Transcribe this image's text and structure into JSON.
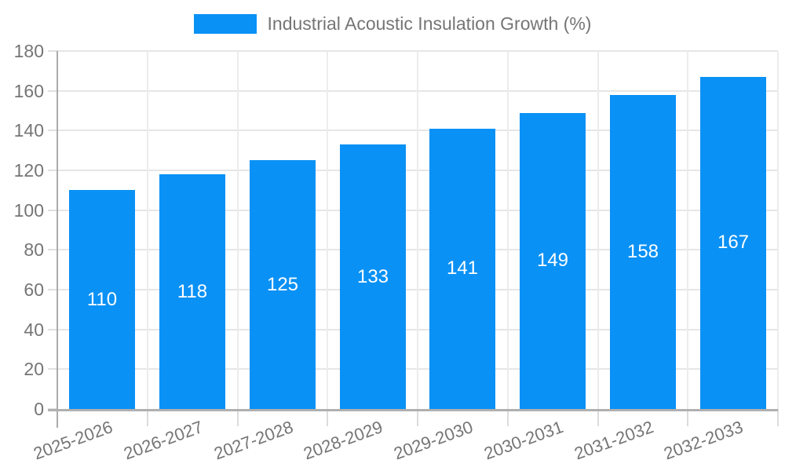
{
  "legend": {
    "label": "Industrial Acoustic Insulation Growth (%)"
  },
  "chart_data": {
    "type": "bar",
    "title": "Industrial Acoustic Insulation Growth (%)",
    "categories": [
      "2025-2026",
      "2026-2027",
      "2027-2028",
      "2028-2029",
      "2029-2030",
      "2030-2031",
      "2031-2032",
      "2032-2033"
    ],
    "values": [
      110,
      118,
      125,
      133,
      141,
      149,
      158,
      167
    ],
    "xlabel": "",
    "ylabel": "",
    "ylim": [
      0,
      180
    ],
    "ytick_step": 20,
    "yticks": [
      0,
      20,
      40,
      60,
      80,
      100,
      120,
      140,
      160,
      180
    ],
    "grid": true,
    "legend_position": "top-center",
    "x_label_rotation_deg": -20,
    "value_labels": "inside-center"
  },
  "colors": {
    "bar": "#0a91f5",
    "value_text": "#ffffff",
    "axis_text": "#757575",
    "gridline": "#e6e6e6",
    "axis_line": "#b0b0b0",
    "background": "#ffffff"
  }
}
